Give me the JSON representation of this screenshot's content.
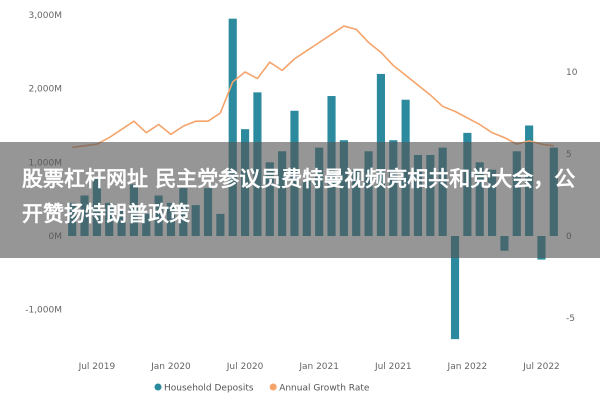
{
  "chart_data": {
    "type": "bar",
    "y_left": {
      "min": -1400,
      "max": 3000,
      "tick_values": [
        -1000,
        0,
        1000,
        2000,
        3000
      ],
      "tick_labels": [
        "-1,000M",
        "0M",
        "1,000M",
        "2,000M",
        "3,000M"
      ]
    },
    "y_right": {
      "min": -7.5,
      "max": 12.5,
      "tick_values": [
        -5,
        0,
        5,
        10
      ],
      "tick_labels": [
        "-5",
        "0",
        "5",
        "10"
      ]
    },
    "x_ticks": [
      {
        "label": "Jul 2019",
        "index": 2
      },
      {
        "label": "Jan 2020",
        "index": 8
      },
      {
        "label": "Jul 2020",
        "index": 14
      },
      {
        "label": "Jan 2021",
        "index": 20
      },
      {
        "label": "Jul 2021",
        "index": 26
      },
      {
        "label": "Jan 2022",
        "index": 32
      },
      {
        "label": "Jul 2022",
        "index": 38
      }
    ],
    "series": [
      {
        "name": "Household Deposits",
        "type": "bar",
        "axis": "left",
        "color": "#2b8a9e",
        "values": [
          450,
          550,
          800,
          450,
          350,
          700,
          300,
          550,
          450,
          650,
          420,
          650,
          300,
          2950,
          1450,
          1950,
          1000,
          1150,
          1700,
          750,
          1200,
          1900,
          1300,
          900,
          1150,
          2200,
          1300,
          1850,
          1100,
          1100,
          1200,
          -1400,
          1400,
          1000,
          900,
          -200,
          1150,
          1500,
          -320,
          1200
        ]
      },
      {
        "name": "Annual Growth Rate",
        "type": "line",
        "axis": "right",
        "color": "#f4a46b",
        "values": [
          5.4,
          5.5,
          5.6,
          6.0,
          6.5,
          7.0,
          6.3,
          6.8,
          6.2,
          6.7,
          7.0,
          7.0,
          7.5,
          9.4,
          10.0,
          9.6,
          10.6,
          10.1,
          10.8,
          11.3,
          11.8,
          12.3,
          12.8,
          12.6,
          11.8,
          11.2,
          10.4,
          9.8,
          9.2,
          8.6,
          7.9,
          7.6,
          7.2,
          6.8,
          6.3,
          6.0,
          5.6,
          5.8,
          5.6,
          5.5
        ]
      }
    ],
    "legend": [
      "Household Deposits",
      "Annual Growth Rate"
    ],
    "legend_position": "bottom",
    "grid": false
  },
  "overlay": {
    "text": "股票杠杆网址 民主党参议员费特曼视频亮相共和党大会，公开赞扬特朗普政策"
  }
}
